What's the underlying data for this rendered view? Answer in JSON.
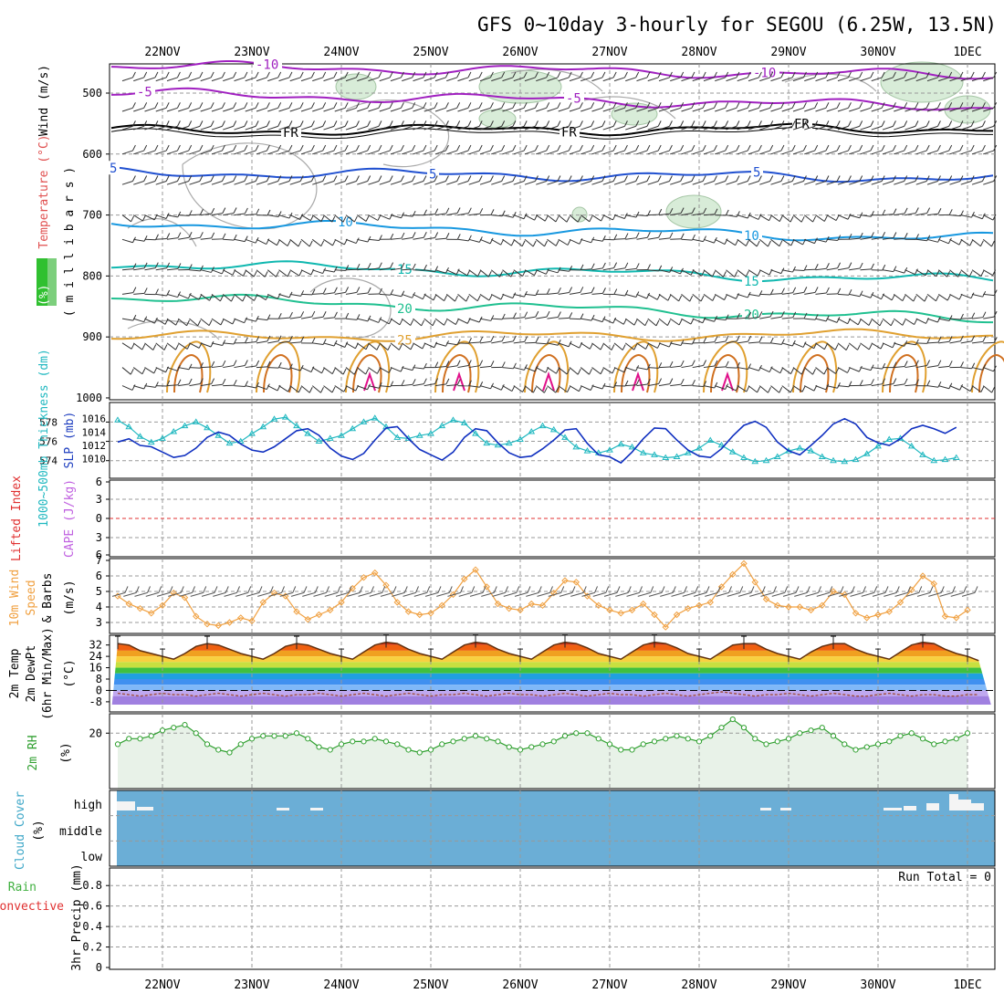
{
  "title": "GFS 0~10day 3-hourly for SEGOU (6.25W, 13.5N)",
  "dates": [
    "22NOV",
    "23NOV",
    "24NOV",
    "25NOV",
    "26NOV",
    "27NOV",
    "28NOV",
    "29NOV",
    "30NOV",
    "1DEC"
  ],
  "colors": {
    "purple": "#a020c0",
    "freezing": "#000000",
    "blue": "#2050d0",
    "lightblue": "#1898e0",
    "teal": "#10b8b0",
    "green": "#20c090",
    "orange": "#e0a030",
    "darkorange": "#d07020",
    "magenta": "#e0108a",
    "thickness": "#20b8c0",
    "slp": "#1030c0",
    "wind10": "#f0a040",
    "rh2m": "#30a030",
    "rhfill": "#e8f2e8",
    "cloud": "#6baed6",
    "li_zero": "#e03030"
  },
  "panels": {
    "upper": {
      "ylabel_parts": [
        "RH (%)",
        "Temperature (°C)",
        "Wind (m/s)"
      ],
      "ylabel_unit": "( m i l l i b a r s )",
      "yticks": [
        500,
        600,
        700,
        800,
        900,
        1000
      ],
      "isotherm_labels": [
        "-10",
        "-5",
        "FR",
        "5",
        "10",
        "15",
        "20",
        "25"
      ]
    },
    "thickness": {
      "ylabel_left": "1000~500mb Thickness (dm)",
      "ylabel_right": "SLP (mb)",
      "left_ticks": [
        574,
        576,
        578
      ],
      "right_ticks": [
        1010,
        1012,
        1014,
        1016
      ]
    },
    "cape": {
      "ylabel_left": "Lifted Index",
      "ylabel_right": "CAPE (J/kg)",
      "ticks": [
        "6",
        "3",
        "0",
        "3",
        "6"
      ]
    },
    "wind": {
      "ylabel": [
        "10m Wind",
        "Speed",
        "& Barbs"
      ],
      "unit": "(m/s)",
      "ticks": [
        3,
        4,
        5,
        6,
        7
      ]
    },
    "temp": {
      "ylabel": [
        "2m Temp",
        "2m DewPt",
        "(6hr Min/Max)"
      ],
      "unit": "(°C)",
      "ticks": [
        "32",
        "24",
        "16",
        "8",
        "0",
        "-8"
      ]
    },
    "rh": {
      "ylabel": "2m RH",
      "unit": "(%)",
      "ticks": [
        "20"
      ]
    },
    "cloud": {
      "ylabel": "Cloud Cover",
      "unit": "(%)",
      "levels": [
        "high",
        "middle",
        "low"
      ]
    },
    "precip": {
      "ylabel_a": "Total / Rain",
      "ylabel_b": "Convective",
      "ylabel_c": "3hr Precip (mm)",
      "ticks": [
        "0",
        "0.2",
        "0.4",
        "0.6",
        "0.8"
      ],
      "run_total": "Run Total = 0"
    }
  },
  "chart_data": {
    "type": "line",
    "time_step_hours": 3,
    "x_labels": [
      "22NOV",
      "23NOV",
      "24NOV",
      "25NOV",
      "26NOV",
      "27NOV",
      "28NOV",
      "29NOV",
      "30NOV",
      "1DEC"
    ],
    "series": [
      {
        "name": "1000~500mb Thickness (dm)",
        "values": [
          576.0,
          577.8,
          578.2,
          577.5,
          576.5,
          575.9,
          576.3,
          577.0,
          577.6,
          578.0,
          577.4,
          576.6,
          575.8,
          576.0,
          576.8,
          577.5,
          578.3,
          578.5,
          577.6,
          576.8,
          576.0,
          576.3,
          576.6,
          577.3,
          578.0,
          578.4,
          577.5,
          576.4,
          576.3,
          576.6,
          576.8,
          577.6,
          578.2,
          577.9,
          576.8,
          575.8,
          575.6,
          575.8,
          576.2,
          577.0,
          577.6,
          577.2,
          576.4,
          575.4,
          575.0,
          574.8,
          575.1,
          575.7,
          575.4,
          574.8,
          574.6,
          574.3,
          574.4,
          574.8,
          575.3,
          576.1,
          575.6,
          574.9,
          574.3,
          573.9,
          574.0,
          574.4,
          575.0,
          575.3,
          575.0,
          574.4,
          574.0,
          573.9,
          574.1,
          574.7,
          575.5,
          576.2,
          576.3,
          575.5,
          574.6,
          574.0,
          574.1,
          574.3
        ]
      },
      {
        "name": "SLP (mb)",
        "values": [
          1010.0,
          1011.0,
          1012.5,
          1013.0,
          1012.0,
          1011.8,
          1011.0,
          1010.2,
          1010.5,
          1011.6,
          1013.2,
          1014.0,
          1013.5,
          1012.2,
          1011.3,
          1011.0,
          1011.8,
          1013.0,
          1014.2,
          1014.5,
          1013.5,
          1011.6,
          1010.4,
          1009.9,
          1010.8,
          1012.8,
          1014.6,
          1014.8,
          1013.0,
          1011.4,
          1010.6,
          1009.8,
          1011.0,
          1013.2,
          1014.5,
          1014.2,
          1012.4,
          1010.9,
          1010.2,
          1010.4,
          1011.5,
          1012.8,
          1014.3,
          1014.5,
          1012.3,
          1010.6,
          1010.3,
          1009.4,
          1011.0,
          1013.0,
          1014.6,
          1014.5,
          1012.8,
          1011.3,
          1010.4,
          1010.2,
          1011.5,
          1013.4,
          1015.0,
          1015.6,
          1014.7,
          1012.5,
          1011.2,
          1010.6,
          1012.0,
          1013.5,
          1015.2,
          1016.0,
          1015.2,
          1013.2,
          1012.4,
          1012.0,
          1013.0,
          1014.5,
          1015.0,
          1014.5,
          1013.8,
          1014.7
        ]
      },
      {
        "name": "10m Wind Speed (m/s)",
        "values": [
          5.0,
          4.4,
          4.7,
          4.2,
          3.9,
          3.6,
          4.1,
          4.9,
          4.6,
          3.4,
          2.9,
          2.8,
          3.0,
          3.3,
          3.1,
          4.3,
          4.9,
          4.7,
          3.7,
          3.2,
          3.5,
          3.8,
          4.3,
          5.2,
          5.9,
          6.2,
          5.4,
          4.3,
          3.7,
          3.5,
          3.6,
          4.1,
          4.8,
          5.8,
          6.4,
          5.3,
          4.2,
          3.9,
          3.8,
          4.2,
          4.1,
          4.9,
          5.7,
          5.6,
          4.7,
          4.1,
          3.8,
          3.6,
          3.8,
          4.2,
          3.5,
          2.7,
          3.5,
          3.9,
          4.1,
          4.3,
          5.3,
          6.1,
          6.8,
          5.6,
          4.5,
          4.1,
          4.0,
          4.0,
          3.8,
          4.1,
          5.0,
          4.8,
          3.6,
          3.3,
          3.5,
          3.7,
          4.3,
          5.1,
          6.0,
          5.5,
          3.4,
          3.3,
          3.8
        ]
      },
      {
        "name": "2m Temperature (°C)",
        "values": [
          30,
          32,
          33,
          32,
          28,
          26,
          24,
          22,
          26,
          31,
          33,
          32,
          29,
          26,
          24,
          22,
          26,
          31,
          33,
          32,
          29,
          26,
          24,
          22,
          27,
          32,
          34,
          33,
          29,
          26,
          24,
          22,
          27,
          32,
          34,
          33,
          29,
          26,
          24,
          22,
          27,
          32,
          34,
          33,
          30,
          26,
          24,
          22,
          27,
          32,
          34,
          33,
          30,
          26,
          24,
          22,
          27,
          32,
          33,
          33,
          29,
          26,
          24,
          22,
          27,
          31,
          33,
          33,
          29,
          26,
          24,
          22,
          27,
          32,
          34,
          33,
          29,
          26,
          24,
          21
        ]
      },
      {
        "name": "2m Dew Point (°C)",
        "values": [
          -4,
          -3,
          -2,
          -3,
          -4,
          -3,
          -2,
          -3,
          -3,
          -4,
          -3,
          -2,
          -3,
          -4,
          -3,
          -2,
          -3,
          -4,
          -3,
          -3,
          -2,
          -3,
          -4,
          -3,
          -2,
          -3,
          -4,
          -3,
          -2,
          -3,
          -4,
          -3,
          -3,
          -2,
          -3,
          -4,
          -3,
          -2,
          -3,
          -3,
          -4,
          -3,
          -2,
          -3,
          -4,
          -3,
          -2,
          -3,
          -3,
          -4,
          -3,
          -2,
          -3,
          -4,
          -3,
          -2,
          -1,
          -2,
          -3,
          -4,
          -3,
          -3,
          -2,
          -3,
          -4,
          -3,
          -2,
          -3,
          -4,
          -4,
          -3,
          -2,
          -3,
          -4,
          -3,
          -3,
          -4,
          -4,
          -3,
          -3
        ]
      },
      {
        "name": "2m RH (%)",
        "values": [
          15,
          14,
          16,
          18,
          18,
          19,
          21,
          22,
          23,
          20,
          16,
          14,
          13,
          16,
          18,
          19,
          19,
          19,
          20,
          18,
          15,
          14,
          16,
          17,
          17,
          18,
          17,
          16,
          14,
          13,
          14,
          16,
          17,
          18,
          19,
          18,
          17,
          15,
          14,
          15,
          16,
          17,
          19,
          20,
          20,
          18,
          16,
          14,
          14,
          16,
          17,
          18,
          19,
          18,
          17,
          19,
          22,
          25,
          22,
          18,
          16,
          17,
          18,
          20,
          21,
          22,
          19,
          16,
          14,
          15,
          16,
          17,
          19,
          20,
          18,
          16,
          17,
          18,
          20
        ]
      }
    ],
    "cloud_cover_high": [
      12,
      4,
      0,
      0,
      0,
      0,
      0,
      0,
      0,
      0,
      0,
      0,
      0,
      0,
      0,
      0,
      0,
      0,
      0,
      0,
      0,
      0,
      0,
      0,
      0,
      0,
      0,
      0,
      0,
      0,
      0,
      0,
      0,
      0,
      0,
      0,
      0,
      0,
      0,
      0,
      0,
      0,
      0,
      0,
      0,
      0,
      0,
      0,
      0,
      0,
      0,
      0,
      0,
      0,
      0,
      0,
      0,
      0,
      0,
      0,
      0,
      0,
      0,
      0,
      0,
      0,
      0,
      0,
      0,
      0,
      0,
      0,
      0,
      0,
      0,
      0,
      0,
      0,
      0
    ],
    "precip_total_mm": 0
  }
}
